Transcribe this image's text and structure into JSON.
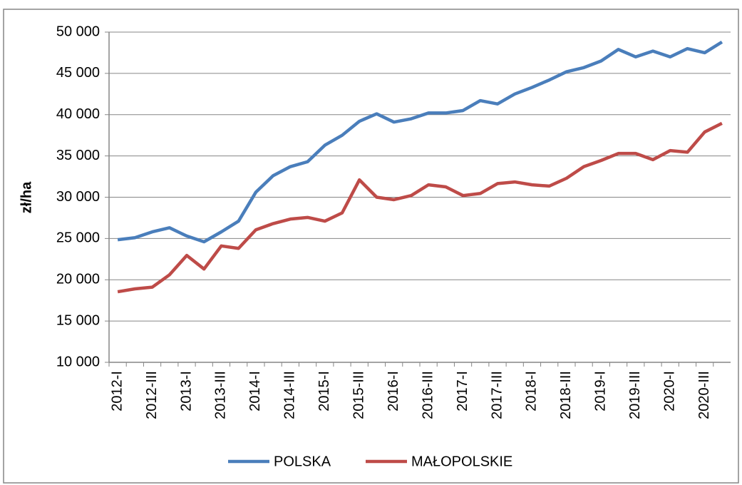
{
  "chart_data": {
    "type": "line",
    "y_label": "zł/ha",
    "categories": [
      "2012-I",
      null,
      "2012-III",
      null,
      "2013-I",
      null,
      "2013-III",
      null,
      "2014-I",
      null,
      "2014-III",
      null,
      "2015-I",
      null,
      "2015-III",
      null,
      "2016-I",
      null,
      "2016-III",
      null,
      "2017-I",
      null,
      "2017-III",
      null,
      "2018-I",
      null,
      "2018-III",
      null,
      "2019-I",
      null,
      "2019-III",
      null,
      "2020-I",
      null,
      "2020-III",
      null
    ],
    "series": [
      {
        "name": "POLSKA",
        "color": "#4a7ebb",
        "values": [
          24850,
          25100,
          25800,
          26300,
          25300,
          24600,
          25800,
          27100,
          30600,
          32600,
          33700,
          34300,
          36300,
          37500,
          39200,
          40100,
          39100,
          39500,
          40200,
          40200,
          40500,
          41700,
          41300,
          42500,
          43300,
          44200,
          45200,
          45700,
          46500,
          47900,
          47000,
          47700,
          47000,
          48000,
          47500,
          48800
        ]
      },
      {
        "name": "MAŁOPOLSKIE",
        "color": "#be4b48",
        "values": [
          18550,
          18900,
          19100,
          20600,
          22950,
          21300,
          24100,
          23800,
          26050,
          26800,
          27350,
          27550,
          27100,
          28100,
          32100,
          30000,
          29700,
          30200,
          31500,
          31250,
          30200,
          30450,
          31650,
          31850,
          31500,
          31350,
          32300,
          33700,
          34450,
          35300,
          35300,
          34550,
          35650,
          35450,
          37900,
          38950
        ]
      }
    ],
    "ylim": [
      10000,
      50000
    ],
    "yticks": [
      {
        "value": 10000,
        "label": "10 000"
      },
      {
        "value": 15000,
        "label": "15 000"
      },
      {
        "value": 20000,
        "label": "20 000"
      },
      {
        "value": 25000,
        "label": "25 000"
      },
      {
        "value": 30000,
        "label": "30 000"
      },
      {
        "value": 35000,
        "label": "35 000"
      },
      {
        "value": 40000,
        "label": "40 000"
      },
      {
        "value": 45000,
        "label": "45 000"
      },
      {
        "value": 50000,
        "label": "50 000"
      }
    ],
    "grid": true,
    "legend": "bottom"
  }
}
